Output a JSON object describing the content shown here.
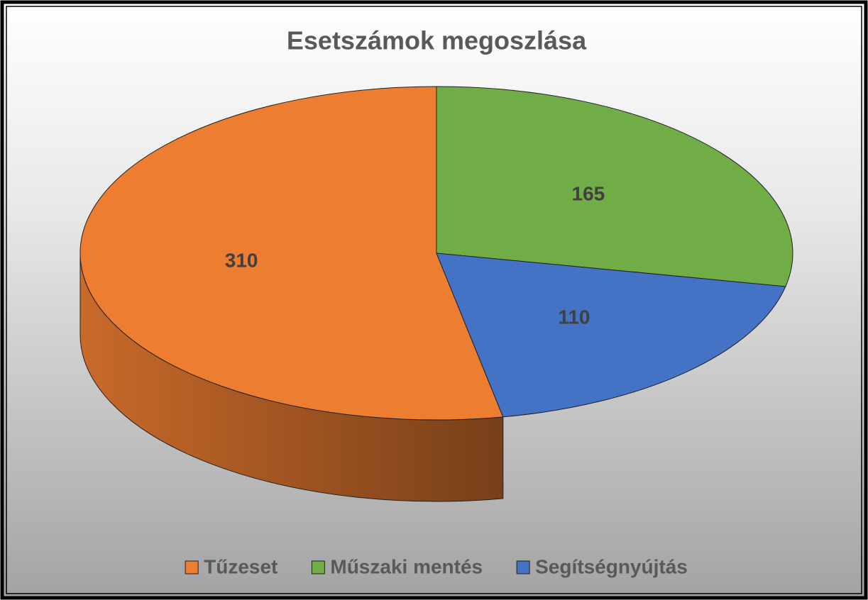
{
  "chart_data": {
    "type": "pie",
    "title": "Esetszámok megoszlása",
    "categories": [
      "Tűzeset",
      "Műszaki mentés",
      "Segítségnyújtás"
    ],
    "values": [
      310,
      165,
      110
    ],
    "colors": [
      "#ed7d31",
      "#70ad47",
      "#4472c4"
    ],
    "legend": "bottom"
  }
}
